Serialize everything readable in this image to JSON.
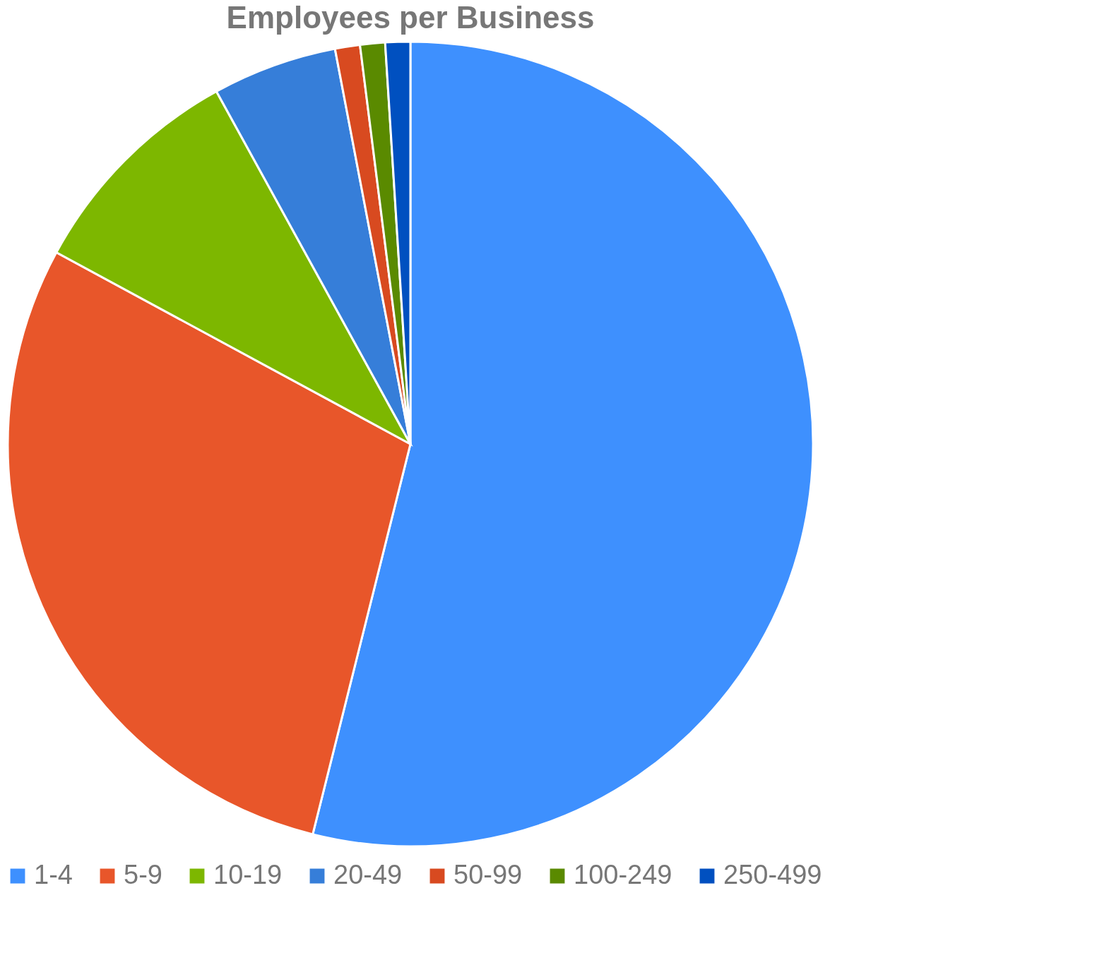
{
  "chart_data": {
    "type": "pie",
    "title": "Employees per Business",
    "categories": [
      "1-4",
      "5-9",
      "10-19",
      "20-49",
      "50-99",
      "100-249",
      "250-499"
    ],
    "values": [
      53.9,
      29.0,
      9.1,
      5.0,
      1.0,
      1.0,
      1.0
    ],
    "colors": [
      "#3e90fe",
      "#e8562a",
      "#7db700",
      "#367ed9",
      "#d84a20",
      "#5a8a00",
      "#0050c0"
    ],
    "legend": "bottom"
  }
}
